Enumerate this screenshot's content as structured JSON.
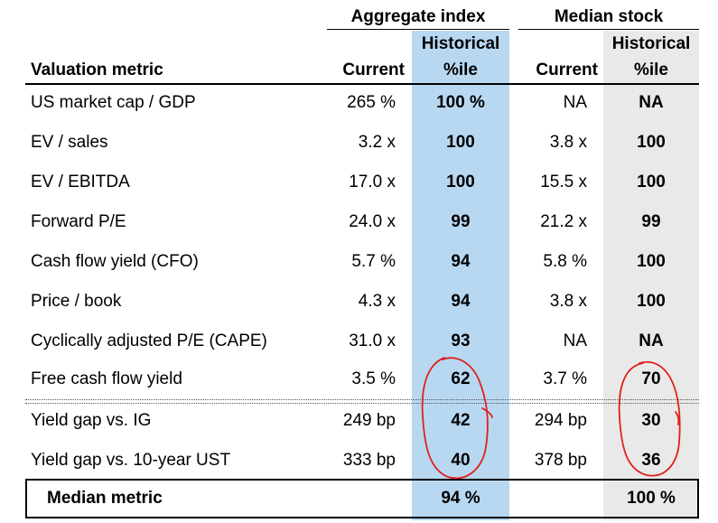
{
  "groups": {
    "aggregate": "Aggregate index",
    "median": "Median stock"
  },
  "headers": {
    "metric": "Valuation metric",
    "agg_current": "Current",
    "agg_pct_line1": "Historical",
    "agg_pct_line2": "%ile",
    "med_current": "Current",
    "med_pct_line1": "Historical",
    "med_pct_line2": "%ile"
  },
  "rows": [
    {
      "metric": "US market cap / GDP",
      "agg_current": "265 %",
      "agg_pct": "100 %",
      "med_current": "NA",
      "med_pct": "NA"
    },
    {
      "metric": "EV / sales",
      "agg_current": "3.2 x",
      "agg_pct": "100",
      "med_current": "3.8 x",
      "med_pct": "100"
    },
    {
      "metric": "EV / EBITDA",
      "agg_current": "17.0 x",
      "agg_pct": "100",
      "med_current": "15.5 x",
      "med_pct": "100"
    },
    {
      "metric": "Forward P/E",
      "agg_current": "24.0 x",
      "agg_pct": "99",
      "med_current": "21.2 x",
      "med_pct": "99"
    },
    {
      "metric": "Cash flow yield (CFO)",
      "agg_current": "5.7 %",
      "agg_pct": "94",
      "med_current": "5.8 %",
      "med_pct": "100"
    },
    {
      "metric": "Price / book",
      "agg_current": "4.3 x",
      "agg_pct": "94",
      "med_current": "3.8 x",
      "med_pct": "100"
    },
    {
      "metric": "Cyclically adjusted P/E (CAPE)",
      "agg_current": "31.0 x",
      "agg_pct": "93",
      "med_current": "NA",
      "med_pct": "NA"
    },
    {
      "metric": "Free cash flow yield",
      "agg_current": "3.5 %",
      "agg_pct": "62",
      "med_current": "3.7 %",
      "med_pct": "70"
    },
    {
      "metric": "Yield gap vs. IG",
      "agg_current": "249 bp",
      "agg_pct": "42",
      "med_current": "294 bp",
      "med_pct": "30"
    },
    {
      "metric": "Yield gap vs. 10-year UST",
      "agg_current": "333 bp",
      "agg_pct": "40",
      "med_current": "378 bp",
      "med_pct": "36"
    }
  ],
  "median_row": {
    "label": "Median metric",
    "agg_pct": "94 %",
    "med_pct": "100 %"
  },
  "colors": {
    "aggregate_shade": "#b8d8f2",
    "median_shade": "#e9e9e9",
    "annotation": "#e0201a"
  }
}
